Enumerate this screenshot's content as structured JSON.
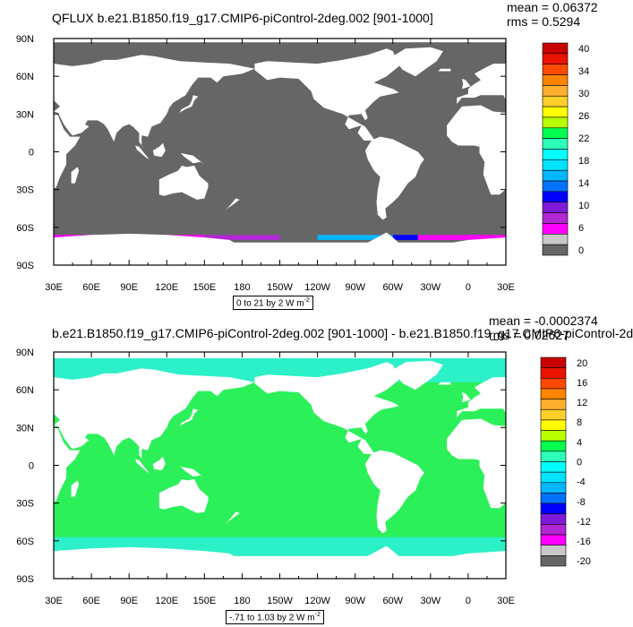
{
  "chart_data": [
    {
      "type": "heatmap",
      "title": "QFLUX b.e21.B1850.f19_g17.CMIP6-piControl-2deg.002 [901-1000]",
      "stats": {
        "mean": "mean = 0.06372",
        "rms": "rms = 0.5294"
      },
      "units_label": "0 to 21 by 2  W m",
      "units_exp": "-2",
      "x_ticks": [
        "30E",
        "60E",
        "90E",
        "120E",
        "150E",
        "180",
        "150W",
        "120W",
        "90W",
        "60W",
        "30W",
        "0",
        "30E"
      ],
      "y_ticks": [
        "90N",
        "60N",
        "30N",
        "0",
        "30S",
        "60S",
        "90S"
      ],
      "xlim": [
        30,
        390
      ],
      "ylim": [
        -90,
        90
      ],
      "ocean_color": "#666666",
      "land_color": "#ffffff",
      "colorbar": {
        "labels": [
          "40",
          "34",
          "30",
          "26",
          "22",
          "18",
          "14",
          "10",
          "6",
          "0"
        ],
        "colors": [
          "#c80000",
          "#ec1300",
          "#ff4a00",
          "#ff8400",
          "#ffae2e",
          "#ffcf29",
          "#ffff00",
          "#b9ff00",
          "#00ff50",
          "#2dffb9",
          "#00ffff",
          "#00e3ff",
          "#00b7ff",
          "#0072ff",
          "#0000ff",
          "#7f1bd8",
          "#b227d4",
          "#ff00ff",
          "#c8c8c8",
          "#666666"
        ]
      },
      "fringe": [
        {
          "lon": 30,
          "lon_end": 150,
          "color": "#ff00ff"
        },
        {
          "lon": 150,
          "lon_end": 210,
          "color": "#b227d4"
        },
        {
          "lon": 240,
          "lon_end": 300,
          "color": "#00b7ff"
        },
        {
          "lon": 300,
          "lon_end": 320,
          "color": "#0000ff"
        },
        {
          "lon": 320,
          "lon_end": 390,
          "color": "#ff00ff"
        }
      ]
    },
    {
      "type": "heatmap",
      "title": "b.e21.B1850.f19_g17.CMIP6-piControl-2deg.002 [901-1000] - b.e21.B1850.f19_g17.CMIP6-piControl-2d",
      "stats": {
        "mean": "mean = -0.0002374",
        "rms": "rms = 0.02627"
      },
      "units_label": "-.71 to 1.03 by 2  W m",
      "units_exp": "-2",
      "x_ticks": [
        "30E",
        "60E",
        "90E",
        "120E",
        "150E",
        "180",
        "150W",
        "120W",
        "90W",
        "60W",
        "30W",
        "0",
        "30E"
      ],
      "y_ticks": [
        "90N",
        "60N",
        "30N",
        "0",
        "30S",
        "60S",
        "90S"
      ],
      "xlim": [
        30,
        390
      ],
      "ylim": [
        -90,
        90
      ],
      "ocean_color": "#2cf05a",
      "land_color": "#ffffff",
      "high_lat_color": "#2cf0c8",
      "colorbar": {
        "labels": [
          "20",
          "16",
          "12",
          "8",
          "4",
          "0",
          "-4",
          "-8",
          "-12",
          "-16",
          "-20"
        ],
        "colors": [
          "#c80000",
          "#ec1300",
          "#ff4a00",
          "#ff8400",
          "#ffae2e",
          "#ffcf29",
          "#ffff00",
          "#b9ff00",
          "#00ff50",
          "#2dffb9",
          "#00ffff",
          "#00e3ff",
          "#00b7ff",
          "#0072ff",
          "#0000ff",
          "#7f1bd8",
          "#b227d4",
          "#ff00ff",
          "#c8c8c8",
          "#666666"
        ]
      }
    }
  ]
}
